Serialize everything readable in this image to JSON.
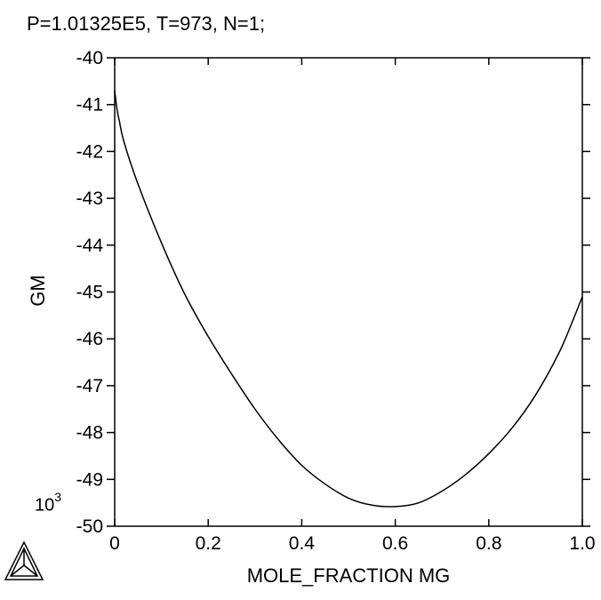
{
  "chart_data": {
    "type": "line",
    "title": "P=1.01325E5, T=973, N=1;",
    "xlabel": "MOLE_FRACTION MG",
    "ylabel": "GM",
    "y_multiplier_label": "10",
    "y_multiplier_exponent": "3",
    "xlim": [
      0,
      1.0
    ],
    "ylim": [
      -50,
      -40
    ],
    "x_ticks": [
      "0",
      "0.2",
      "0.4",
      "0.6",
      "0.8",
      "1.0"
    ],
    "y_ticks": [
      "-40",
      "-41",
      "-42",
      "-43",
      "-44",
      "-45",
      "-46",
      "-47",
      "-48",
      "-49",
      "-50"
    ],
    "grid": false,
    "series": [
      {
        "x": [
          0,
          0.005,
          0.01,
          0.02,
          0.05,
          0.1,
          0.15,
          0.2,
          0.25,
          0.3,
          0.35,
          0.4,
          0.45,
          0.5,
          0.55,
          0.6,
          0.65,
          0.7,
          0.75,
          0.8,
          0.85,
          0.9,
          0.95,
          0.98,
          1.0
        ],
        "y": [
          -40.7,
          -41.1,
          -41.35,
          -41.8,
          -42.7,
          -43.95,
          -45.05,
          -45.95,
          -46.75,
          -47.5,
          -48.15,
          -48.7,
          -49.1,
          -49.4,
          -49.55,
          -49.58,
          -49.5,
          -49.25,
          -48.9,
          -48.45,
          -47.9,
          -47.2,
          -46.3,
          -45.6,
          -45.1
        ]
      }
    ]
  },
  "logo": {
    "name": "triangle-logo",
    "color": "#000000"
  }
}
